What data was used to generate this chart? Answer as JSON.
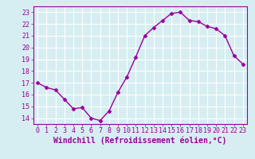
{
  "x": [
    0,
    1,
    2,
    3,
    4,
    5,
    6,
    7,
    8,
    9,
    10,
    11,
    12,
    13,
    14,
    15,
    16,
    17,
    18,
    19,
    20,
    21,
    22,
    23
  ],
  "y": [
    17.0,
    16.6,
    16.4,
    15.6,
    14.8,
    14.9,
    14.0,
    13.8,
    14.6,
    16.2,
    17.5,
    19.2,
    21.0,
    21.7,
    22.3,
    22.9,
    23.0,
    22.3,
    22.2,
    21.8,
    21.6,
    21.0,
    19.3,
    18.6
  ],
  "line_color": "#990099",
  "marker": "D",
  "marker_size": 2.5,
  "bg_color": "#d6eef2",
  "grid_color": "#ffffff",
  "xlabel": "Windchill (Refroidissement éolien,°C)",
  "yticks": [
    14,
    15,
    16,
    17,
    18,
    19,
    20,
    21,
    22,
    23
  ],
  "xticks": [
    0,
    1,
    2,
    3,
    4,
    5,
    6,
    7,
    8,
    9,
    10,
    11,
    12,
    13,
    14,
    15,
    16,
    17,
    18,
    19,
    20,
    21,
    22,
    23
  ],
  "ylim": [
    13.5,
    23.5
  ],
  "xlim": [
    -0.5,
    23.5
  ],
  "xlabel_fontsize": 7,
  "tick_fontsize": 6,
  "tick_color": "#990099",
  "label_color": "#990099",
  "spine_color": "#990099",
  "line_width": 1.0
}
